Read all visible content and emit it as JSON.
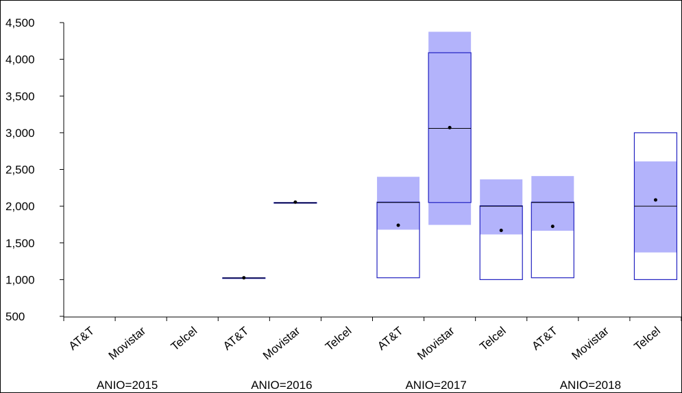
{
  "chart_data": {
    "type": "boxplot",
    "title": "",
    "xlabel": "",
    "ylabel": "",
    "ylim": [
      500,
      4500
    ],
    "yticks": [
      500,
      1000,
      1500,
      2000,
      2500,
      3000,
      3500,
      4000,
      4500
    ],
    "ytick_labels": [
      "500",
      "1,000",
      "1,500",
      "2,000",
      "2,500",
      "3,000",
      "3,500",
      "4,000",
      "4,500"
    ],
    "grid": false,
    "legend": "none",
    "colors": {
      "box_stroke": "#2020c0",
      "ci_fill": "#b3b3fb",
      "median": "#000000",
      "mean": "#000000",
      "axis": "#000000"
    },
    "groups": [
      {
        "label": "ANIO=2015",
        "boxes": [
          {
            "category": "AT&T"
          },
          {
            "category": "Movistar"
          },
          {
            "category": "Telcel"
          }
        ]
      },
      {
        "label": "ANIO=2016",
        "boxes": [
          {
            "category": "AT&T",
            "q1": 1018,
            "median": 1022,
            "q3": 1025,
            "mean": 1025,
            "ci_low": 1018,
            "ci_high": 1025
          },
          {
            "category": "Movistar",
            "q1": 2040,
            "median": 2045,
            "q3": 2050,
            "mean": 2055,
            "ci_low": 2040,
            "ci_high": 2050
          },
          {
            "category": "Telcel"
          }
        ]
      },
      {
        "label": "ANIO=2017",
        "boxes": [
          {
            "category": "AT&T",
            "q1": 1025,
            "median": 2050,
            "q3": 2055,
            "mean": 1740,
            "ci_low": 1680,
            "ci_high": 2400
          },
          {
            "category": "Movistar",
            "q1": 2050,
            "median": 3060,
            "q3": 4090,
            "mean": 3070,
            "ci_low": 1745,
            "ci_high": 4375
          },
          {
            "category": "Telcel",
            "q1": 1000,
            "median": 2000,
            "q3": 2005,
            "mean": 1670,
            "ci_low": 1615,
            "ci_high": 2365
          }
        ]
      },
      {
        "label": "ANIO=2018",
        "boxes": [
          {
            "category": "AT&T",
            "q1": 1025,
            "median": 2050,
            "q3": 2055,
            "mean": 1725,
            "ci_low": 1665,
            "ci_high": 2410
          },
          {
            "category": "Movistar"
          },
          {
            "category": "Telcel",
            "q1": 1000,
            "median": 2000,
            "q3": 3000,
            "mean": 2085,
            "ci_low": 1370,
            "ci_high": 2610
          }
        ]
      }
    ]
  }
}
